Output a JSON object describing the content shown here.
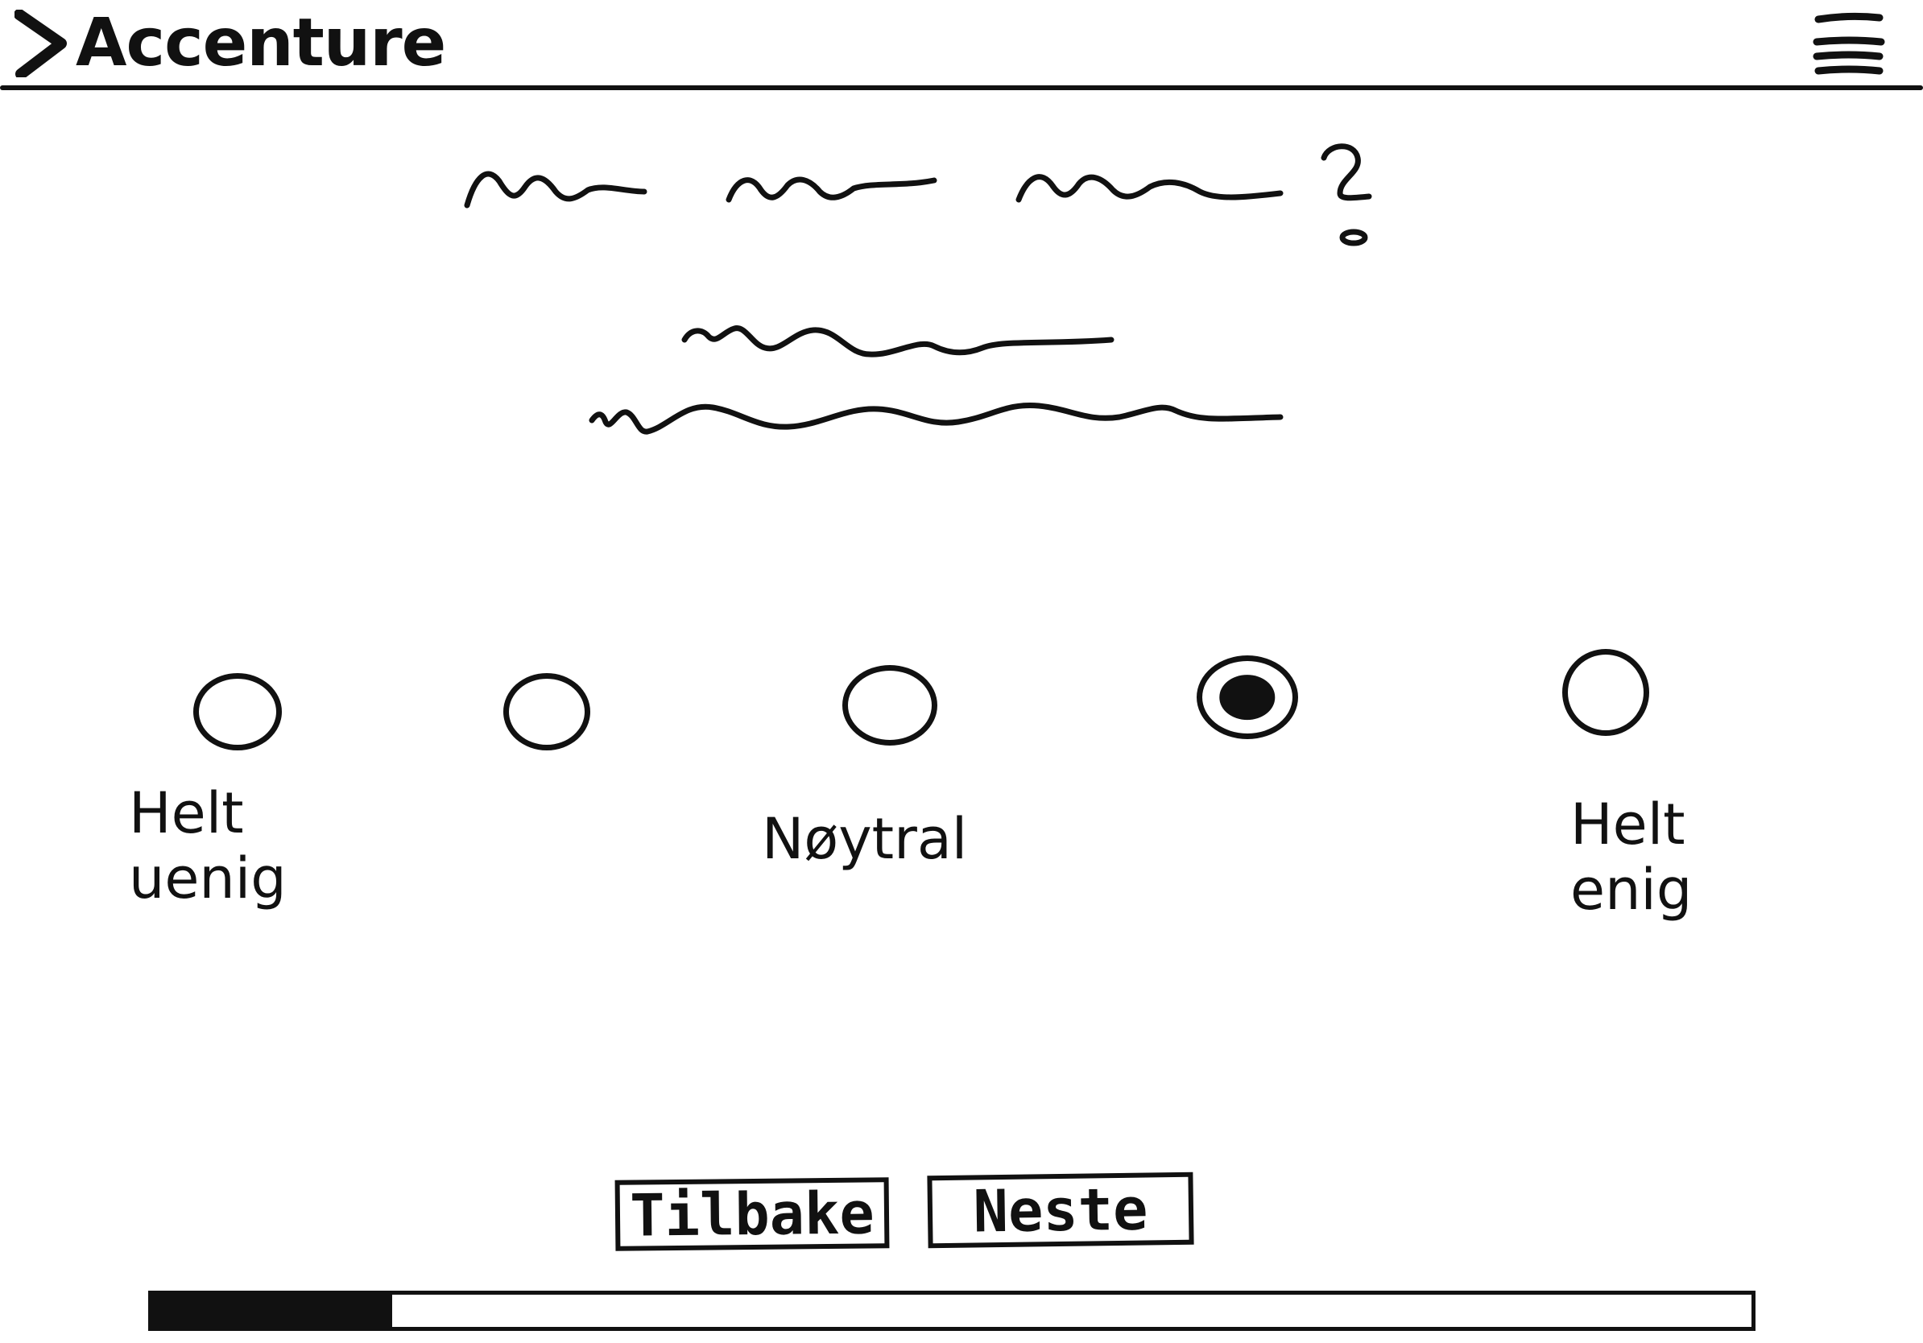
{
  "header": {
    "brand": "Accenture",
    "menu_icon": "hamburger-menu-icon"
  },
  "scale": {
    "options": [
      {
        "selected": false
      },
      {
        "selected": false
      },
      {
        "selected": false
      },
      {
        "selected": true
      },
      {
        "selected": false
      }
    ],
    "label_left": "Helt\nuenig",
    "label_middle": "Nøytral",
    "label_right": "Helt\nenig"
  },
  "buttons": {
    "back_label": "Tilbake",
    "next_label": "Neste"
  },
  "progress": {
    "fraction": 0.15
  },
  "colors": {
    "ink": "#111111",
    "background": "#ffffff"
  }
}
